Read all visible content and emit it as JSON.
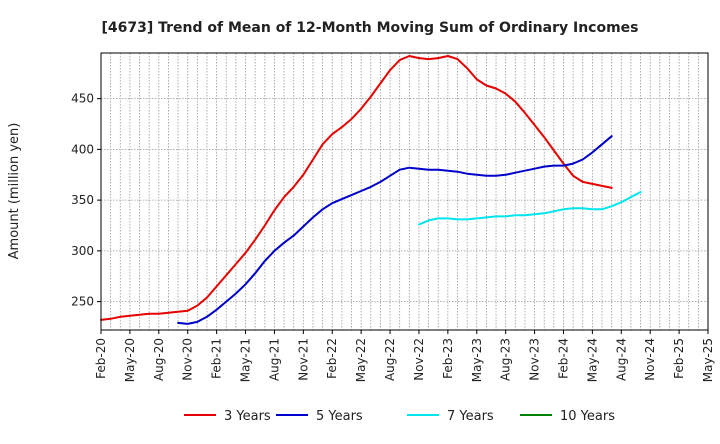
{
  "chart_data": {
    "type": "line",
    "title": "[4673]  Trend of Mean of 12-Month Moving Sum of Ordinary Incomes",
    "xlabel": "",
    "ylabel": "Amount (million yen)",
    "ylim": [
      222,
      495
    ],
    "yticks": [
      250,
      300,
      350,
      400,
      450
    ],
    "x_start": "Feb-20",
    "x_months_total": 63,
    "xtick_labels": [
      "Feb-20",
      "May-20",
      "Aug-20",
      "Nov-20",
      "Feb-21",
      "May-21",
      "Aug-21",
      "Nov-21",
      "Feb-22",
      "May-22",
      "Aug-22",
      "Nov-22",
      "Feb-23",
      "May-23",
      "Aug-23",
      "Nov-23",
      "Feb-24",
      "May-24",
      "Aug-24",
      "Nov-24",
      "Feb-25",
      "May-25"
    ],
    "grid": true,
    "legend_position": "bottom",
    "series": [
      {
        "name": "3 Years",
        "color": "#e60000",
        "start_index": 0,
        "values": [
          232,
          233,
          235,
          236,
          237,
          238,
          238,
          239,
          240,
          241,
          246,
          254,
          265,
          276,
          287,
          298,
          311,
          325,
          340,
          353,
          363,
          375,
          390,
          405,
          415,
          422,
          430,
          440,
          452,
          465,
          478,
          488,
          492,
          490,
          489,
          490,
          492,
          489,
          480,
          469,
          463,
          460,
          455,
          447,
          436,
          424,
          412,
          399,
          386,
          374,
          368,
          366,
          364,
          362
        ]
      },
      {
        "name": "5 Years",
        "color": "#0000cc",
        "start_index": 8,
        "values": [
          229,
          228,
          230,
          235,
          242,
          250,
          258,
          267,
          278,
          290,
          300,
          308,
          315,
          324,
          333,
          341,
          347,
          351,
          355,
          359,
          363,
          368,
          374,
          380,
          382,
          381,
          380,
          380,
          379,
          378,
          376,
          375,
          374,
          374,
          375,
          377,
          379,
          381,
          383,
          384,
          384,
          386,
          390,
          397,
          405,
          413
        ]
      },
      {
        "name": "7 Years",
        "color": "#00e5ee",
        "start_index": 33,
        "values": [
          326,
          330,
          332,
          332,
          331,
          331,
          332,
          333,
          334,
          334,
          335,
          335,
          336,
          337,
          339,
          341,
          342,
          342,
          341,
          341,
          344,
          348,
          353,
          358
        ]
      },
      {
        "name": "10 Years",
        "color": "#008000",
        "start_index": 0,
        "values": []
      }
    ]
  }
}
